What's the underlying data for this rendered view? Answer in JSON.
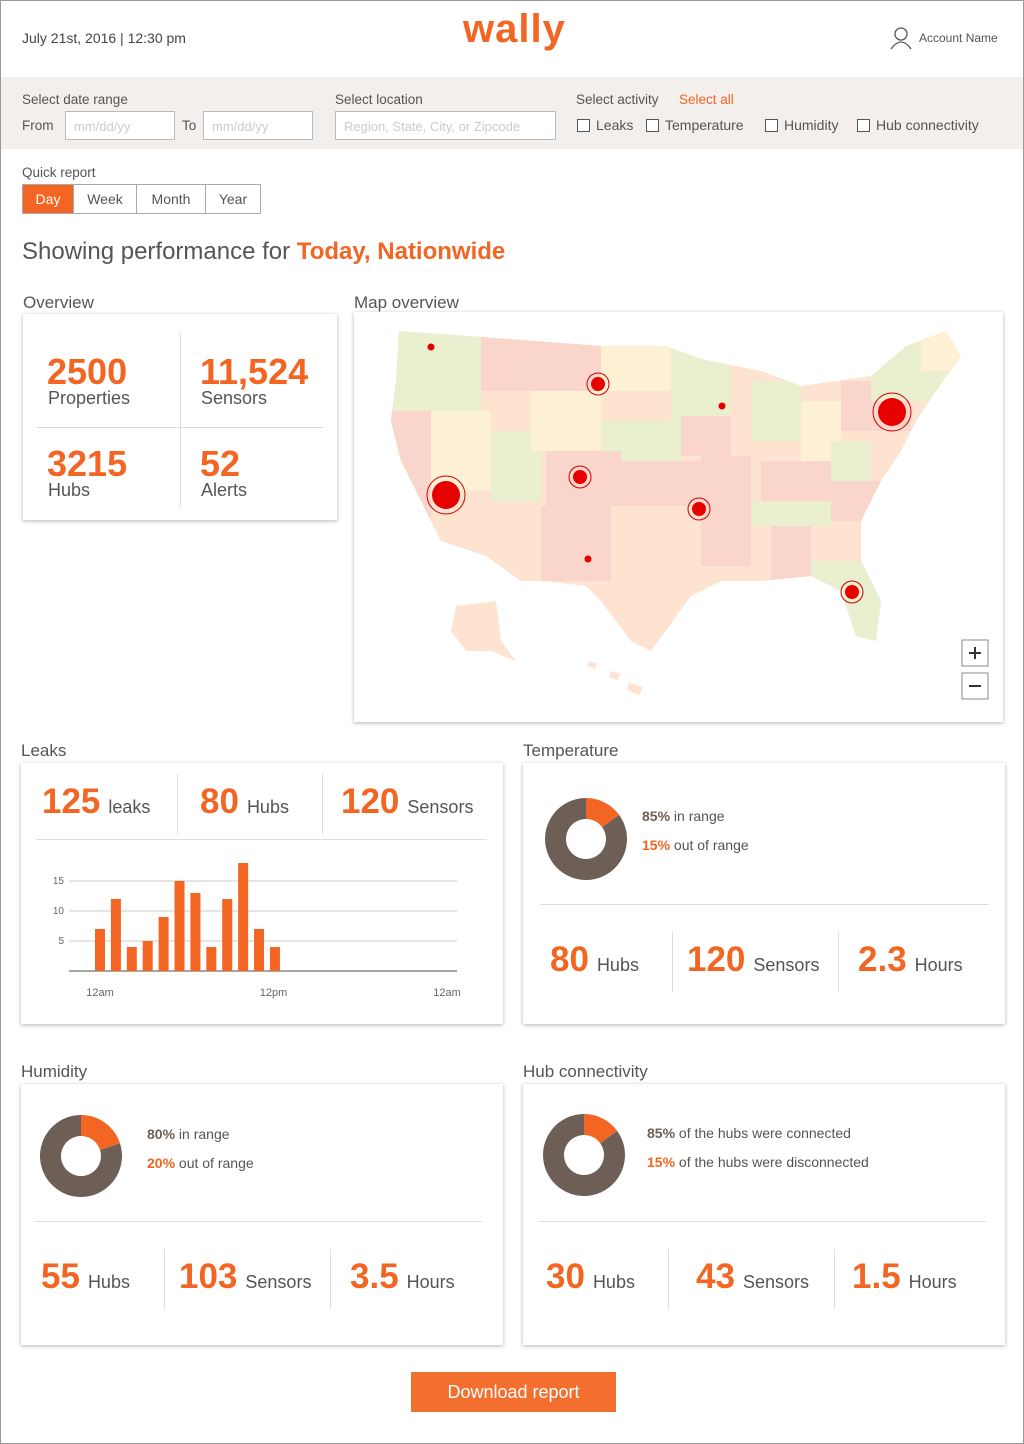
{
  "header": {
    "date": "July 21st, 2016 | 12:30 pm",
    "logo": "wally",
    "account": "Account Name"
  },
  "filters": {
    "date_range": {
      "label": "Select date range",
      "from": "From",
      "to": "To",
      "placeholder": "mm/dd/yy"
    },
    "location": {
      "label": "Select location",
      "placeholder": "Region, State, City, or Zipcode"
    },
    "activity": {
      "label": "Select activity",
      "select_all": "Select all",
      "options": [
        "Leaks",
        "Temperature",
        "Humidity",
        "Hub connectivity"
      ]
    }
  },
  "quick_report": {
    "label": "Quick report",
    "options": [
      "Day",
      "Week",
      "Month",
      "Year"
    ],
    "selected": 0
  },
  "heading": {
    "text": "Showing performance for",
    "highlight": "Today, Nationwide"
  },
  "overview": {
    "title": "Overview",
    "stats": [
      {
        "value": 2500,
        "label": "Properties"
      },
      {
        "value": "11,524",
        "label": "Sensors"
      },
      {
        "value": 3215,
        "label": "Hubs"
      },
      {
        "value": 52,
        "label": "Alerts"
      }
    ]
  },
  "map": {
    "title": "Map overview"
  },
  "leaks": {
    "title": "Leaks",
    "stats": [
      {
        "value": 125,
        "label": "leaks"
      },
      {
        "value": 80,
        "label": "Hubs"
      },
      {
        "value": 120,
        "label": "Sensors"
      }
    ]
  },
  "temperature": {
    "title": "Temperature",
    "stats": [
      {
        "value": 80,
        "label": "Hubs"
      },
      {
        "value": 120,
        "label": "Sensors"
      },
      {
        "value": 2.3,
        "label": "Hours"
      }
    ]
  },
  "humidity": {
    "title": "Humidity",
    "stats": [
      {
        "value": 55,
        "label": "Hubs"
      },
      {
        "value": 103,
        "label": "Sensors"
      },
      {
        "value": 3.5,
        "label": "Hours"
      }
    ]
  },
  "hub_connectivity": {
    "title": "Hub connectivity",
    "stats": [
      {
        "value": 30,
        "label": "Hubs"
      },
      {
        "value": 43,
        "label": "Sensors"
      },
      {
        "value": 1.5,
        "label": "Hours"
      }
    ]
  },
  "chart_data": [
    {
      "type": "bar",
      "x": [
        0,
        1,
        2,
        3,
        4,
        5,
        6,
        7,
        8,
        9,
        10,
        11
      ],
      "values": [
        7,
        12,
        4,
        5,
        9,
        15,
        13,
        4,
        12,
        18,
        7,
        4
      ],
      "color": "#f26522",
      "xlim": [
        0,
        24
      ],
      "xticks": [
        {
          "value": 0,
          "label": "12am"
        },
        {
          "value": 12,
          "label": "12pm"
        },
        {
          "value": 24,
          "label": "12am"
        }
      ],
      "ylim": [
        0,
        20
      ],
      "yticks": [
        5,
        10,
        15
      ],
      "grid": true
    },
    {
      "type": "donut",
      "categories": [
        "in range",
        "out of range"
      ],
      "values": [
        85,
        15
      ],
      "value_labels": [
        "85%",
        "15%"
      ],
      "colors": [
        "#6d5f56",
        "#f26522"
      ]
    },
    {
      "type": "donut",
      "categories": [
        "in range",
        "out of range"
      ],
      "values": [
        80,
        20
      ],
      "value_labels": [
        "80%",
        "20%"
      ],
      "colors": [
        "#6d5f56",
        "#f26522"
      ]
    },
    {
      "type": "donut",
      "categories": [
        "of the hubs were connected",
        "of the hubs were disconnected"
      ],
      "values": [
        85,
        15
      ],
      "value_labels": [
        "85%",
        "15%"
      ],
      "colors": [
        "#6d5f56",
        "#f26522"
      ]
    }
  ],
  "download": "Download report"
}
